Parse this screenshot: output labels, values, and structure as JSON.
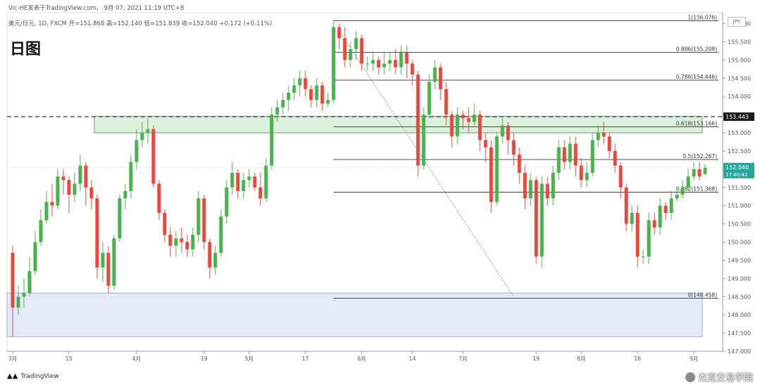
{
  "header": {
    "line1": "Vic-HE发表于TradingView.com， 9月 07, 2021 11:19 UTC+8",
    "line2": "美元/日元, 1D, FXCM  开=151.868  高=152.140  低=151.839  收=152.040  +0.172 (+0.11%)",
    "title": "日图",
    "currency": "JPY"
  },
  "footer": {
    "brand": "TradingView",
    "wechat": "杰克交易学院"
  },
  "colors": {
    "up": "#4caf50",
    "down": "#e04a3f",
    "zone_green": "#d8f0da",
    "zone_blue": "#e3e8fb",
    "price_label": "#1b1b1b",
    "current_label": "#26a69a"
  },
  "chart_data": {
    "type": "candlestick",
    "ylim": [
      147.0,
      156.3
    ],
    "y_ticks": [
      "156.000",
      "155.500",
      "155.000",
      "154.500",
      "154.000",
      "153.500",
      "153.000",
      "152.500",
      "152.000",
      "151.500",
      "151.000",
      "150.500",
      "150.000",
      "149.500",
      "149.000",
      "148.500",
      "148.000",
      "147.500",
      "147.000"
    ],
    "x_labels": [
      {
        "label": "3月",
        "index": 0
      },
      {
        "label": "15",
        "index": 10
      },
      {
        "label": "4月",
        "index": 22
      },
      {
        "label": "19",
        "index": 34
      },
      {
        "label": "5月",
        "index": 42
      },
      {
        "label": "17",
        "index": 52
      },
      {
        "label": "6月",
        "index": 62
      },
      {
        "label": "14",
        "index": 71
      },
      {
        "label": "7月",
        "index": 80
      },
      {
        "label": "19",
        "index": 93
      },
      {
        "label": "8月",
        "index": 101
      },
      {
        "label": "16",
        "index": 111
      },
      {
        "label": "9月",
        "index": 121
      }
    ],
    "candles": [
      [
        149.7,
        148.2,
        149.9,
        147.4
      ],
      [
        148.2,
        148.5,
        148.8,
        148.0
      ],
      [
        148.5,
        148.6,
        149.0,
        148.2
      ],
      [
        148.6,
        149.2,
        149.6,
        148.5
      ],
      [
        149.2,
        150.0,
        150.3,
        149.1
      ],
      [
        150.0,
        150.6,
        150.9,
        149.9
      ],
      [
        150.6,
        151.1,
        151.4,
        150.5
      ],
      [
        151.1,
        151.0,
        151.6,
        150.7
      ],
      [
        151.0,
        151.8,
        152.0,
        150.9
      ],
      [
        151.8,
        151.7,
        152.0,
        151.3
      ],
      [
        151.7,
        151.3,
        151.8,
        150.8
      ],
      [
        151.3,
        151.6,
        151.9,
        151.1
      ],
      [
        151.6,
        152.1,
        152.4,
        151.4
      ],
      [
        152.1,
        151.5,
        152.2,
        151.0
      ],
      [
        151.5,
        151.2,
        151.7,
        150.9
      ],
      [
        151.2,
        149.3,
        151.3,
        149.0
      ],
      [
        149.3,
        149.7,
        150.0,
        148.9
      ],
      [
        149.7,
        148.8,
        149.9,
        148.6
      ],
      [
        148.8,
        150.1,
        150.2,
        148.7
      ],
      [
        150.1,
        151.2,
        151.3,
        150.0
      ],
      [
        151.2,
        151.4,
        151.6,
        150.9
      ],
      [
        151.4,
        152.2,
        152.4,
        151.2
      ],
      [
        152.2,
        152.8,
        153.1,
        152.0
      ],
      [
        152.8,
        153.0,
        153.3,
        152.6
      ],
      [
        153.0,
        153.1,
        153.4,
        152.7
      ],
      [
        153.1,
        151.6,
        153.2,
        151.5
      ],
      [
        151.6,
        150.8,
        151.7,
        150.6
      ],
      [
        150.8,
        150.2,
        150.9,
        150.0
      ],
      [
        150.2,
        149.9,
        150.4,
        149.6
      ],
      [
        149.9,
        150.1,
        150.3,
        149.6
      ],
      [
        150.1,
        150.0,
        150.4,
        149.7
      ],
      [
        150.0,
        149.8,
        150.2,
        149.6
      ],
      [
        149.8,
        150.2,
        150.4,
        149.6
      ],
      [
        150.2,
        151.2,
        151.4,
        150.0
      ],
      [
        151.2,
        150.0,
        151.3,
        149.8
      ],
      [
        150.0,
        149.3,
        150.1,
        149.0
      ],
      [
        149.3,
        149.7,
        149.9,
        149.1
      ],
      [
        149.7,
        150.7,
        150.9,
        149.6
      ],
      [
        150.7,
        151.5,
        151.7,
        150.5
      ],
      [
        151.5,
        151.9,
        152.2,
        151.3
      ],
      [
        151.9,
        151.4,
        152.0,
        151.2
      ],
      [
        151.4,
        151.7,
        151.9,
        151.2
      ],
      [
        151.7,
        151.8,
        152.0,
        151.5
      ],
      [
        151.8,
        151.5,
        151.9,
        151.4
      ],
      [
        151.5,
        151.2,
        151.9,
        151.0
      ],
      [
        151.2,
        152.1,
        152.3,
        151.1
      ],
      [
        152.1,
        153.5,
        153.7,
        152.0
      ],
      [
        153.5,
        153.7,
        153.9,
        153.3
      ],
      [
        153.7,
        153.9,
        154.1,
        153.5
      ],
      [
        153.9,
        154.1,
        154.3,
        153.6
      ],
      [
        154.1,
        154.3,
        154.5,
        153.9
      ],
      [
        154.3,
        154.5,
        154.7,
        154.0
      ],
      [
        154.5,
        154.2,
        154.7,
        154.0
      ],
      [
        154.2,
        153.9,
        154.3,
        153.7
      ],
      [
        153.9,
        154.3,
        154.5,
        153.7
      ],
      [
        154.3,
        153.8,
        154.4,
        153.6
      ],
      [
        153.8,
        153.9,
        154.1,
        153.7
      ],
      [
        153.9,
        155.9,
        156.1,
        153.8
      ],
      [
        155.9,
        155.6,
        156.0,
        155.3
      ],
      [
        155.6,
        155.0,
        155.9,
        154.8
      ],
      [
        155.0,
        155.3,
        155.5,
        154.8
      ],
      [
        155.3,
        155.6,
        155.8,
        155.0
      ],
      [
        155.6,
        154.9,
        155.7,
        154.7
      ],
      [
        154.9,
        154.9,
        155.1,
        154.7
      ],
      [
        154.9,
        155.0,
        155.2,
        154.7
      ],
      [
        155.0,
        154.8,
        155.1,
        154.6
      ],
      [
        154.8,
        154.9,
        155.2,
        154.6
      ],
      [
        154.9,
        155.0,
        155.2,
        154.7
      ],
      [
        155.0,
        154.8,
        155.3,
        154.6
      ],
      [
        154.8,
        155.2,
        155.4,
        154.6
      ],
      [
        155.2,
        154.9,
        155.4,
        154.5
      ],
      [
        154.9,
        154.6,
        155.0,
        154.3
      ],
      [
        154.6,
        152.1,
        154.7,
        151.8
      ],
      [
        152.1,
        153.5,
        153.7,
        152.0
      ],
      [
        153.5,
        154.4,
        154.6,
        153.4
      ],
      [
        154.4,
        154.8,
        155.0,
        154.2
      ],
      [
        154.8,
        154.2,
        154.9,
        153.9
      ],
      [
        154.2,
        153.5,
        154.4,
        153.2
      ],
      [
        153.5,
        152.9,
        153.6,
        152.6
      ],
      [
        152.9,
        153.5,
        153.7,
        152.7
      ],
      [
        153.5,
        153.4,
        153.6,
        153.1
      ],
      [
        153.4,
        153.3,
        153.7,
        153.0
      ],
      [
        153.3,
        153.5,
        153.8,
        153.2
      ],
      [
        153.5,
        152.8,
        153.6,
        152.5
      ],
      [
        152.8,
        152.6,
        153.0,
        152.2
      ],
      [
        152.6,
        151.1,
        152.8,
        150.8
      ],
      [
        151.1,
        152.9,
        153.0,
        151.0
      ],
      [
        152.9,
        153.2,
        153.4,
        152.7
      ],
      [
        153.2,
        152.8,
        153.3,
        152.4
      ],
      [
        152.8,
        152.4,
        153.0,
        152.1
      ],
      [
        152.4,
        151.9,
        152.6,
        151.6
      ],
      [
        151.9,
        151.2,
        152.1,
        150.9
      ],
      [
        151.2,
        151.7,
        151.9,
        151.0
      ],
      [
        151.7,
        149.6,
        151.8,
        149.4
      ],
      [
        149.6,
        151.6,
        151.8,
        149.3
      ],
      [
        151.6,
        151.2,
        151.8,
        151.0
      ],
      [
        151.2,
        151.9,
        152.1,
        151.0
      ],
      [
        151.9,
        152.6,
        152.8,
        151.7
      ],
      [
        152.6,
        152.2,
        152.8,
        152.0
      ],
      [
        152.2,
        152.7,
        152.9,
        152.0
      ],
      [
        152.7,
        152.1,
        152.9,
        151.8
      ],
      [
        152.1,
        151.7,
        152.3,
        151.5
      ],
      [
        151.7,
        151.9,
        152.2,
        151.5
      ],
      [
        151.9,
        152.8,
        153.0,
        151.8
      ],
      [
        152.8,
        153.0,
        153.2,
        152.6
      ],
      [
        153.0,
        152.9,
        153.3,
        152.7
      ],
      [
        152.9,
        152.5,
        153.0,
        152.3
      ],
      [
        152.5,
        152.1,
        152.7,
        151.9
      ],
      [
        152.1,
        151.5,
        152.2,
        151.2
      ],
      [
        151.5,
        150.5,
        151.6,
        150.3
      ],
      [
        150.5,
        150.8,
        151.0,
        150.3
      ],
      [
        150.8,
        149.6,
        151.0,
        149.3
      ],
      [
        149.6,
        149.6,
        149.8,
        149.4
      ],
      [
        149.6,
        150.6,
        150.8,
        149.4
      ],
      [
        150.6,
        150.4,
        150.8,
        150.2
      ],
      [
        150.4,
        151.0,
        151.2,
        150.2
      ],
      [
        151.0,
        150.8,
        151.1,
        150.6
      ],
      [
        150.8,
        151.2,
        151.4,
        150.6
      ],
      [
        151.2,
        151.3,
        151.5,
        151.1
      ],
      [
        151.3,
        151.5,
        151.7,
        151.2
      ],
      [
        151.5,
        151.8,
        152.0,
        151.4
      ],
      [
        151.8,
        152.0,
        152.2,
        151.7
      ],
      [
        152.0,
        151.8,
        152.2,
        151.7
      ],
      [
        151.868,
        152.04,
        152.14,
        151.839
      ]
    ],
    "zones": [
      {
        "from": 153.0,
        "to": 153.45,
        "x_start": 15,
        "x_end": 122,
        "color": "green"
      },
      {
        "from": 147.4,
        "to": 148.6,
        "x_start": 0,
        "x_end": 122,
        "color": "blue"
      }
    ],
    "horizontal_lines": [
      {
        "y": 153.443,
        "style": "dashed",
        "x_start": 0,
        "label": "153.443"
      }
    ],
    "fibonacci": {
      "x_start": 57,
      "x_end": 122,
      "levels": [
        {
          "ratio": "1",
          "price": 156.076,
          "label": "1(156.076)"
        },
        {
          "ratio": "0.886",
          "price": 155.208,
          "label": "0.886(155.208)"
        },
        {
          "ratio": "0.786",
          "price": 154.446,
          "label": "0.786(154.446)"
        },
        {
          "ratio": "0.618",
          "price": 153.166,
          "label": "0.618(153.166)"
        },
        {
          "ratio": "0.5",
          "price": 152.267,
          "label": "0.5(152.267)"
        },
        {
          "ratio": "0.382",
          "price": 151.368,
          "label": "0.382(151.368)"
        },
        {
          "ratio": "0",
          "price": 148.458,
          "label": "0(148.458)"
        }
      ]
    },
    "trend_line": {
      "from": {
        "index": 58,
        "price": 155.8
      },
      "to": {
        "index": 89,
        "price": 148.5
      },
      "style": "dotted"
    },
    "current_price": {
      "value": "152.040",
      "time": "17:40:41"
    }
  }
}
